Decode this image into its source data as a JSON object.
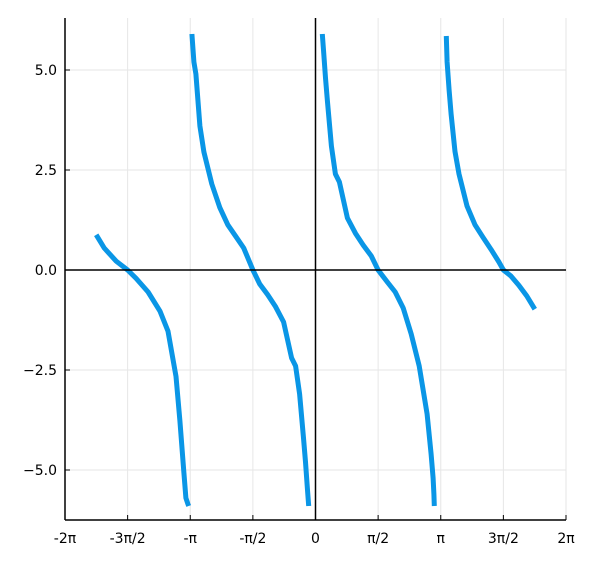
{
  "chart_data": {
    "type": "line",
    "title": "",
    "xlabel": "",
    "ylabel": "",
    "grid": true,
    "legend": "none",
    "xlim": [
      -6.2832,
      6.2832
    ],
    "ylim": [
      -6.25,
      6.3
    ],
    "x_ticks": [
      {
        "value": -6.2832,
        "label": "-2π"
      },
      {
        "value": -4.7124,
        "label": "-3π/2"
      },
      {
        "value": -3.1416,
        "label": "-π"
      },
      {
        "value": -1.5708,
        "label": "-π/2"
      },
      {
        "value": 0,
        "label": "0"
      },
      {
        "value": 1.5708,
        "label": "π/2"
      },
      {
        "value": 3.1416,
        "label": "π"
      },
      {
        "value": 4.7124,
        "label": "3π/2"
      },
      {
        "value": 6.2832,
        "label": "2π"
      }
    ],
    "y_ticks": [
      {
        "value": 5.0,
        "label": "5.0"
      },
      {
        "value": 2.5,
        "label": "2.5"
      },
      {
        "value": 0.0,
        "label": "0.0"
      },
      {
        "value": -2.5,
        "label": "−2.5"
      },
      {
        "value": -5.0,
        "label": "−5.0"
      }
    ],
    "series_color": "#0a96e6",
    "series": [
      {
        "x": [
          -5.5,
          -5.3,
          -5.0,
          -4.712,
          -4.5,
          -4.2,
          -3.9,
          -3.7,
          -3.5,
          -3.4,
          -3.3,
          -3.25,
          -3.2,
          -3.18
        ],
        "y": [
          0.88,
          0.55,
          0.22,
          0.0,
          -0.21,
          -0.55,
          -1.03,
          -1.53,
          -2.66,
          -3.77,
          -5.07,
          -5.7,
          -5.85,
          -5.9
        ]
      },
      {
        "x": [
          -3.1,
          -3.05,
          -3.0,
          -2.9,
          -2.8,
          -2.6,
          -2.4,
          -2.2,
          -2.0,
          -1.8,
          -1.571,
          -1.4,
          -1.2,
          -1.0,
          -0.8,
          -0.6,
          -0.5,
          -0.4,
          -0.3,
          -0.25,
          -0.2,
          -0.17
        ],
        "y": [
          5.9,
          5.2,
          4.9,
          3.6,
          2.95,
          2.15,
          1.56,
          1.13,
          0.84,
          0.55,
          0.0,
          -0.35,
          -0.62,
          -0.92,
          -1.3,
          -2.2,
          -2.4,
          -3.1,
          -4.2,
          -4.8,
          -5.5,
          -5.9
        ]
      },
      {
        "x": [
          0.17,
          0.2,
          0.25,
          0.3,
          0.4,
          0.5,
          0.6,
          0.8,
          1.0,
          1.2,
          1.4,
          1.571,
          1.8,
          2.0,
          2.2,
          2.4,
          2.6,
          2.8,
          2.9,
          2.95,
          2.97,
          2.98
        ],
        "y": [
          5.9,
          5.5,
          4.8,
          4.2,
          3.1,
          2.4,
          2.2,
          1.3,
          0.92,
          0.62,
          0.35,
          0.0,
          -0.3,
          -0.55,
          -0.95,
          -1.6,
          -2.4,
          -3.6,
          -4.6,
          -5.2,
          -5.6,
          -5.9
        ]
      },
      {
        "x": [
          3.28,
          3.3,
          3.35,
          3.4,
          3.5,
          3.6,
          3.8,
          4.0,
          4.2,
          4.4,
          4.6,
          4.712,
          4.9,
          5.1,
          5.3,
          5.5
        ],
        "y": [
          5.85,
          5.2,
          4.5,
          3.9,
          2.96,
          2.4,
          1.6,
          1.13,
          0.82,
          0.52,
          0.2,
          0.0,
          -0.15,
          -0.38,
          -0.65,
          -0.98
        ]
      }
    ]
  }
}
